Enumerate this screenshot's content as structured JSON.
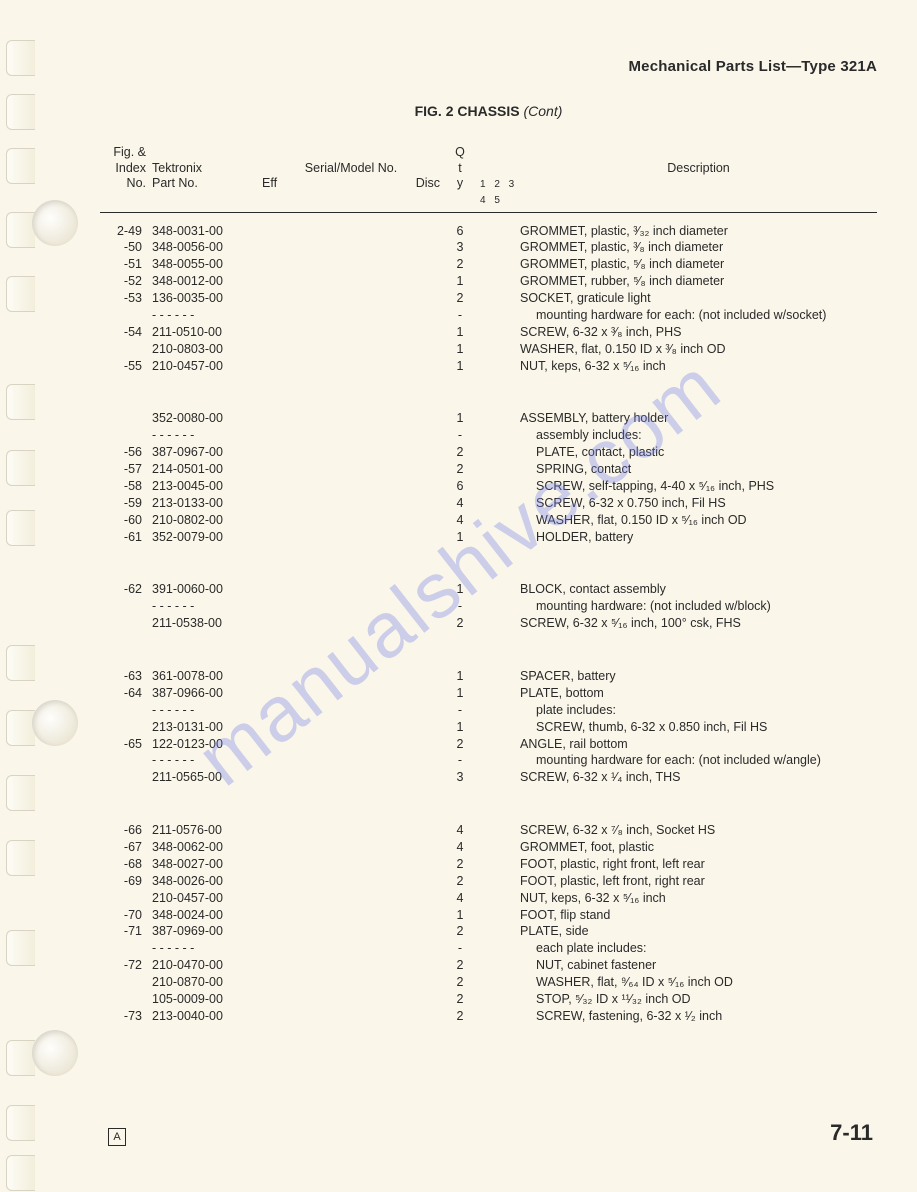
{
  "header_right": "Mechanical Parts List—Type 321A",
  "fig_title_bold": "FIG. 2  CHASSIS",
  "fig_title_cont": "(Cont)",
  "col_heads": {
    "c1a": "Fig. &",
    "c1b": "Index",
    "c1c": "No.",
    "c2a": "Tektronix",
    "c2b": "Part No.",
    "c3a": "Serial/Model  No.",
    "c3b": "Eff",
    "c3c": "Disc",
    "c4a": "Q",
    "c4b": "t",
    "c4c": "y",
    "c5": "Description",
    "c5sub": "1  2  3  4  5"
  },
  "footer": {
    "rev": "A",
    "page": "7-11"
  },
  "watermark": "manualshive.com",
  "rows": [
    {
      "idx": "2-49",
      "part": "348-0031-00",
      "qty": "6",
      "desc": "GROMMET, plastic, ³⁄₃₂ inch diameter"
    },
    {
      "idx": "-50",
      "part": "348-0056-00",
      "qty": "3",
      "desc": "GROMMET, plastic, ³⁄₈ inch diameter"
    },
    {
      "idx": "-51",
      "part": "348-0055-00",
      "qty": "2",
      "desc": "GROMMET, plastic, ⁵⁄₈ inch diameter"
    },
    {
      "idx": "-52",
      "part": "348-0012-00",
      "qty": "1",
      "desc": "GROMMET, rubber, ⁵⁄₈ inch diameter"
    },
    {
      "idx": "-53",
      "part": "136-0035-00",
      "qty": "2",
      "desc": "SOCKET, graticule light"
    },
    {
      "idx": "",
      "part": "-  -  -  -  -  -",
      "qty": "-",
      "desc": "mounting hardware for each: (not included w/socket)",
      "ind": 1
    },
    {
      "idx": "-54",
      "part": "211-0510-00",
      "qty": "1",
      "desc": "SCREW, 6-32 x ³⁄₈ inch, PHS"
    },
    {
      "idx": "",
      "part": "210-0803-00",
      "qty": "1",
      "desc": "WASHER, flat, 0.150 ID x ³⁄₈ inch OD"
    },
    {
      "idx": "-55",
      "part": "210-0457-00",
      "qty": "1",
      "desc": "NUT, keps, 6-32 x ⁵⁄₁₆ inch"
    },
    {
      "gap": "big"
    },
    {
      "idx": "",
      "part": "352-0080-00",
      "qty": "1",
      "desc": "ASSEMBLY, battery holder"
    },
    {
      "idx": "",
      "part": "-  -  -  -  -  -",
      "qty": "-",
      "desc": "assembly includes:",
      "ind": 1
    },
    {
      "idx": "-56",
      "part": "387-0967-00",
      "qty": "2",
      "desc": "PLATE, contact, plastic",
      "ind": 1
    },
    {
      "idx": "-57",
      "part": "214-0501-00",
      "qty": "2",
      "desc": "SPRING, contact",
      "ind": 1
    },
    {
      "idx": "-58",
      "part": "213-0045-00",
      "qty": "6",
      "desc": "SCREW, self-tapping, 4-40 x ⁵⁄₁₆ inch, PHS",
      "ind": 1
    },
    {
      "idx": "-59",
      "part": "213-0133-00",
      "qty": "4",
      "desc": "SCREW, 6-32 x 0.750 inch, Fil HS",
      "ind": 1
    },
    {
      "idx": "-60",
      "part": "210-0802-00",
      "qty": "4",
      "desc": "WASHER, flat, 0.150 ID x ⁵⁄₁₆ inch OD",
      "ind": 1
    },
    {
      "idx": "-61",
      "part": "352-0079-00",
      "qty": "1",
      "desc": "HOLDER, battery",
      "ind": 1
    },
    {
      "gap": "big"
    },
    {
      "idx": "-62",
      "part": "391-0060-00",
      "qty": "1",
      "desc": "BLOCK, contact assembly"
    },
    {
      "idx": "",
      "part": "-  -  -  -  -  -",
      "qty": "-",
      "desc": "mounting hardware: (not included w/block)",
      "ind": 1
    },
    {
      "idx": "",
      "part": "211-0538-00",
      "qty": "2",
      "desc": "SCREW, 6-32 x ⁵⁄₁₆ inch, 100° csk, FHS"
    },
    {
      "gap": "big"
    },
    {
      "idx": "-63",
      "part": "361-0078-00",
      "qty": "1",
      "desc": "SPACER, battery"
    },
    {
      "idx": "-64",
      "part": "387-0966-00",
      "qty": "1",
      "desc": "PLATE, bottom"
    },
    {
      "idx": "",
      "part": "-  -  -  -  -  -",
      "qty": "-",
      "desc": "plate includes:",
      "ind": 1
    },
    {
      "idx": "",
      "part": "213-0131-00",
      "qty": "1",
      "desc": "SCREW, thumb, 6-32 x 0.850 inch, Fil HS",
      "ind": 1
    },
    {
      "idx": "-65",
      "part": "122-0123-00",
      "qty": "2",
      "desc": "ANGLE, rail bottom"
    },
    {
      "idx": "",
      "part": "-  -  -  -  -  -",
      "qty": "-",
      "desc": "mounting hardware for each: (not included w/angle)",
      "ind": 1
    },
    {
      "idx": "",
      "part": "211-0565-00",
      "qty": "3",
      "desc": "SCREW, 6-32 x ¹⁄₄ inch, THS"
    },
    {
      "gap": "big"
    },
    {
      "idx": "-66",
      "part": "211-0576-00",
      "qty": "4",
      "desc": "SCREW, 6-32 x ⁷⁄₈ inch, Socket HS"
    },
    {
      "idx": "-67",
      "part": "348-0062-00",
      "qty": "4",
      "desc": "GROMMET, foot, plastic"
    },
    {
      "idx": "-68",
      "part": "348-0027-00",
      "qty": "2",
      "desc": "FOOT, plastic, right front, left rear"
    },
    {
      "idx": "-69",
      "part": "348-0026-00",
      "qty": "2",
      "desc": "FOOT, plastic, left front, right rear"
    },
    {
      "idx": "",
      "part": "210-0457-00",
      "qty": "4",
      "desc": "NUT, keps, 6-32 x ⁵⁄₁₆ inch"
    },
    {
      "idx": "-70",
      "part": "348-0024-00",
      "qty": "1",
      "desc": "FOOT, flip stand"
    },
    {
      "idx": "-71",
      "part": "387-0969-00",
      "qty": "2",
      "desc": "PLATE, side"
    },
    {
      "idx": "",
      "part": "-  -  -  -  -  -",
      "qty": "-",
      "desc": "each plate includes:",
      "ind": 1
    },
    {
      "idx": "-72",
      "part": "210-0470-00",
      "qty": "2",
      "desc": "NUT, cabinet fastener",
      "ind": 1
    },
    {
      "idx": "",
      "part": "210-0870-00",
      "qty": "2",
      "desc": "WASHER, flat, ⁹⁄₆₄ ID x ⁵⁄₁₆ inch OD",
      "ind": 1
    },
    {
      "idx": "",
      "part": "105-0009-00",
      "qty": "2",
      "desc": "STOP, ⁵⁄₃₂ ID x ¹¹⁄₃₂ inch OD",
      "ind": 1
    },
    {
      "idx": "-73",
      "part": "213-0040-00",
      "qty": "2",
      "desc": "SCREW, fastening, 6-32 x ¹⁄₂ inch",
      "ind": 1
    }
  ],
  "binder": {
    "notches": [
      40,
      94,
      148,
      212,
      276,
      384,
      450,
      510,
      645,
      710,
      775,
      840,
      930,
      1040,
      1105,
      1155
    ],
    "holes": [
      200,
      700,
      1030
    ]
  }
}
